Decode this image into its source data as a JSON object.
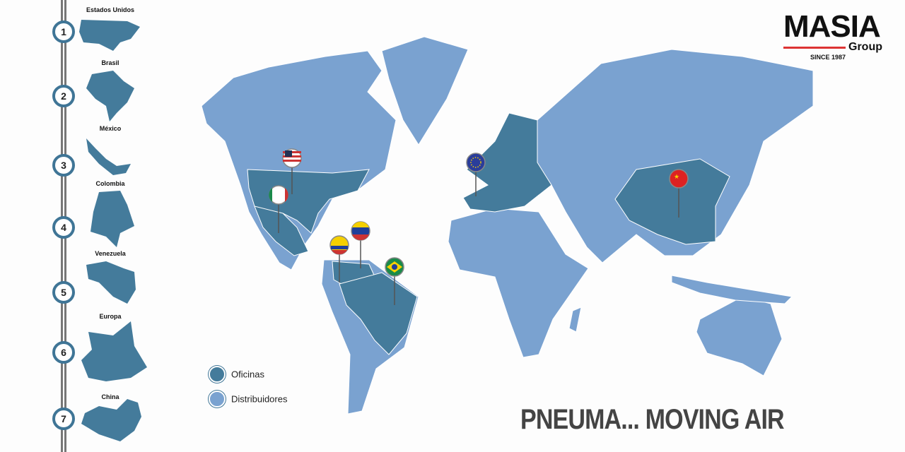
{
  "colors": {
    "offices": "#447b9b",
    "distributors": "#7aa2d0",
    "accent": "#d33333"
  },
  "brand": {
    "name": "MASIA",
    "sub": "Group",
    "since": "SINCE 1987"
  },
  "steps": [
    {
      "n": "1",
      "label": "Estados Unidos"
    },
    {
      "n": "2",
      "label": "Brasil"
    },
    {
      "n": "3",
      "label": "México"
    },
    {
      "n": "4",
      "label": "Colombia"
    },
    {
      "n": "5",
      "label": "Venezuela"
    },
    {
      "n": "6",
      "label": "Europa"
    },
    {
      "n": "7",
      "label": "China"
    }
  ],
  "legend": {
    "offices": "Oficinas",
    "distributors": "Distribuidores"
  },
  "tagline": "PNEUMA... MOVING AIR",
  "pins": [
    "usa-flag",
    "mexico-flag",
    "colombia-flag",
    "venezuela-flag",
    "brazil-flag",
    "eu-flag",
    "china-flag"
  ]
}
